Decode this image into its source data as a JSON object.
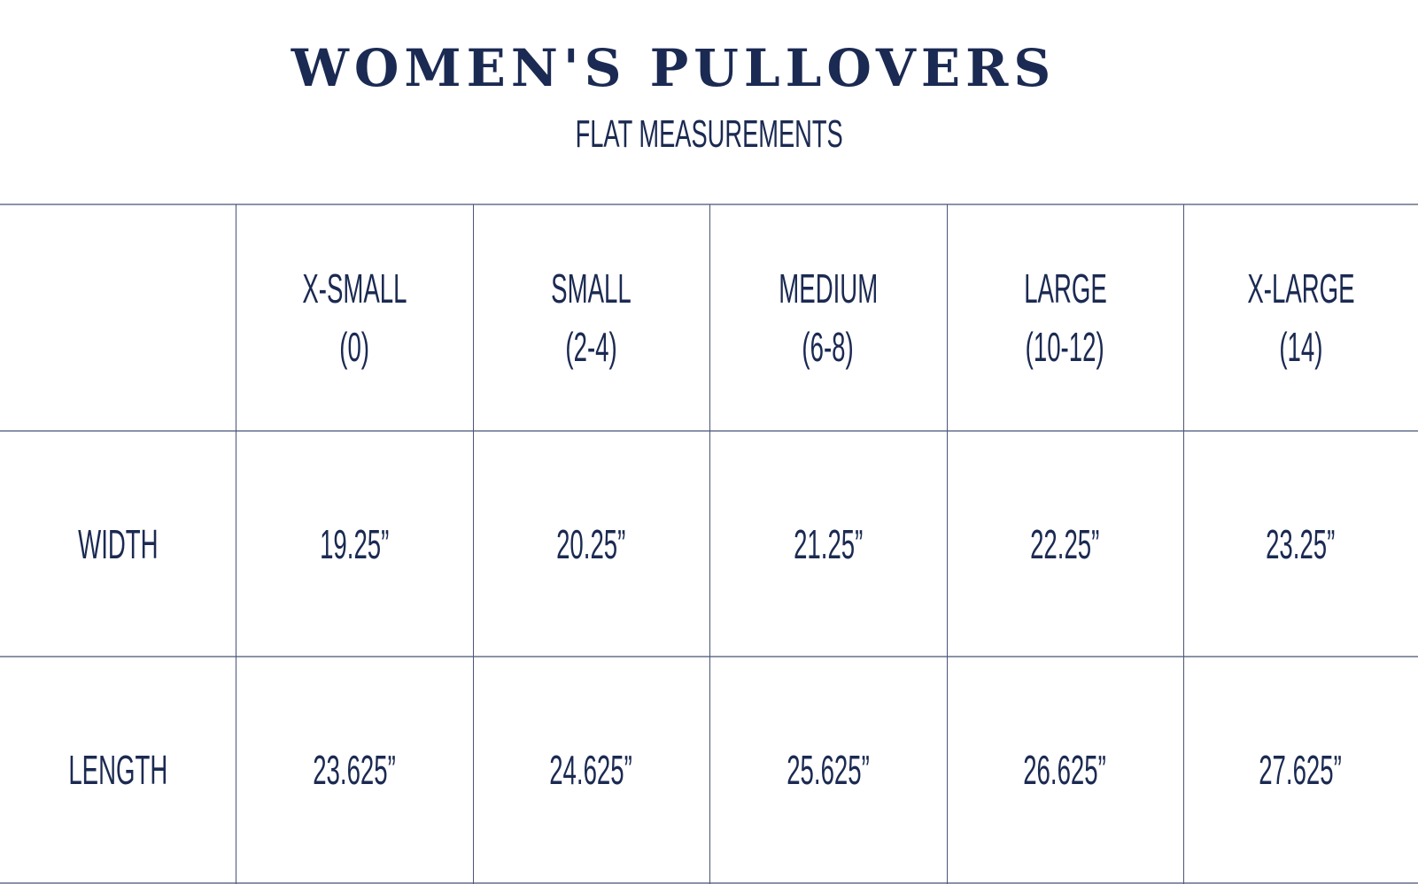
{
  "title": "WOMEN'S PULLOVERS",
  "subtitle": "FLAT MEASUREMENTS",
  "table": {
    "columns": [
      {
        "name": "X-SMALL",
        "range": "(0)"
      },
      {
        "name": "SMALL",
        "range": "(2-4)"
      },
      {
        "name": "MEDIUM",
        "range": "(6-8)"
      },
      {
        "name": "LARGE",
        "range": "(10-12)"
      },
      {
        "name": "X-LARGE",
        "range": "(14)"
      }
    ],
    "rows": [
      {
        "label": "WIDTH",
        "values": [
          "19.25”",
          "20.25”",
          "21.25”",
          "22.25”",
          "23.25”"
        ]
      },
      {
        "label": "LENGTH",
        "values": [
          "23.625”",
          "24.625”",
          "25.625”",
          "26.625”",
          "27.625”"
        ]
      }
    ]
  },
  "colors": {
    "text": "#1b2a52",
    "row_line": "#8a93a8",
    "column_line": "#4a5578"
  }
}
